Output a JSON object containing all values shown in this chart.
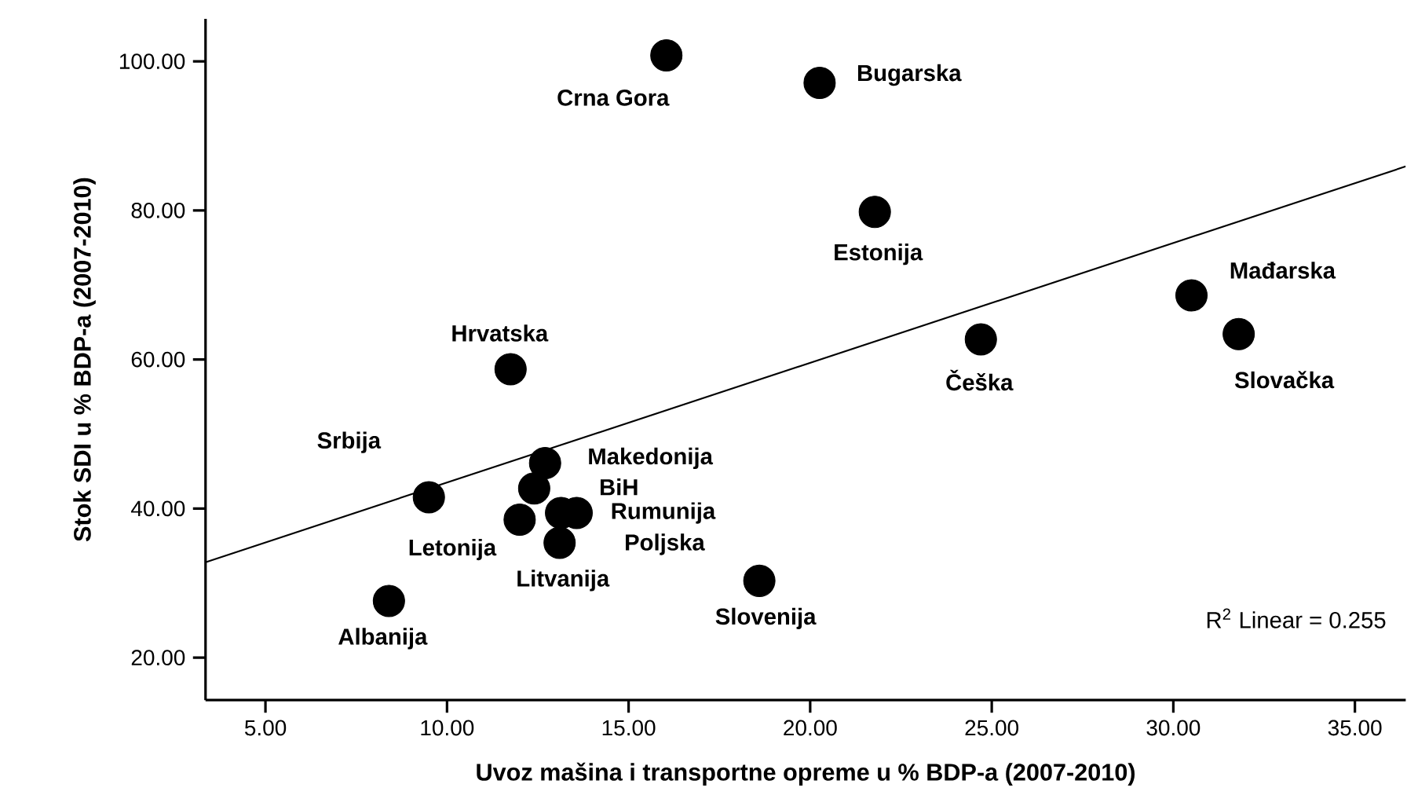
{
  "chart_data": {
    "type": "scatter",
    "xlabel": "Uvoz mašina i transportne opreme u % BDP-a (2007-2010)",
    "ylabel": "Stok SDI u % BDP-a (2007-2010)",
    "xlim": [
      3.35,
      36.4
    ],
    "ylim": [
      14.3,
      105.7
    ],
    "xticks": [
      {
        "value": 5,
        "label": "5.00"
      },
      {
        "value": 10,
        "label": "10.00"
      },
      {
        "value": 15,
        "label": "15.00"
      },
      {
        "value": 20,
        "label": "20.00"
      },
      {
        "value": 25,
        "label": "25.00"
      },
      {
        "value": 30,
        "label": "30.00"
      },
      {
        "value": 35,
        "label": "35.00"
      }
    ],
    "yticks": [
      {
        "value": 20,
        "label": "20.00"
      },
      {
        "value": 40,
        "label": "40.00"
      },
      {
        "value": 60,
        "label": "60.00"
      },
      {
        "value": 80,
        "label": "80.00"
      },
      {
        "value": 100,
        "label": "100.00"
      }
    ],
    "grid": false,
    "legend": false,
    "marker": "circle",
    "series": [
      {
        "color": "#000000",
        "x": [
          16.04,
          20.26,
          21.78,
          11.75,
          24.7,
          30.5,
          31.8,
          9.5,
          12.7,
          12.4,
          13.14,
          13.57,
          12.0,
          13.1,
          8.4,
          18.6
        ],
        "values": [
          100.8,
          97.1,
          79.8,
          58.7,
          62.7,
          68.6,
          63.4,
          41.5,
          46.1,
          42.7,
          39.4,
          39.4,
          38.5,
          35.4,
          27.6,
          30.3
        ]
      },
      {
        "type": "line",
        "marker": "none",
        "color": "#000000",
        "x": [
          3.35,
          36.4
        ],
        "values": [
          32.8,
          85.9
        ]
      }
    ],
    "annotations": [
      {
        "text": "Crna Gora",
        "x": 16.04,
        "y": 100.8
      },
      {
        "text": "Bugarska",
        "x": 20.26,
        "y": 97.1
      },
      {
        "text": "Estonija",
        "x": 21.78,
        "y": 79.8
      },
      {
        "text": "Hrvatska",
        "x": 11.75,
        "y": 58.7
      },
      {
        "text": "Češka",
        "x": 24.7,
        "y": 62.7
      },
      {
        "text": "Mađarska",
        "x": 30.5,
        "y": 68.6
      },
      {
        "text": "Slovačka",
        "x": 31.8,
        "y": 63.4
      },
      {
        "text": "Srbija",
        "x": 9.5,
        "y": 41.5
      },
      {
        "text": "Makedonija",
        "x": 12.7,
        "y": 46.1
      },
      {
        "text": "BiH",
        "x": 12.4,
        "y": 42.7
      },
      {
        "text": "Rumunija",
        "x": 13.14,
        "y": 39.4
      },
      {
        "text": "Poljska",
        "x": 13.57,
        "y": 39.4
      },
      {
        "text": "Letonija",
        "x": 12.0,
        "y": 38.5
      },
      {
        "text": "Litvanija",
        "x": 13.1,
        "y": 35.4
      },
      {
        "text": "Albanija",
        "x": 8.4,
        "y": 27.6
      },
      {
        "text": "Slovenija",
        "x": 18.6,
        "y": 30.3
      },
      "R$^{2}$ Linear = 0.255"
    ]
  }
}
